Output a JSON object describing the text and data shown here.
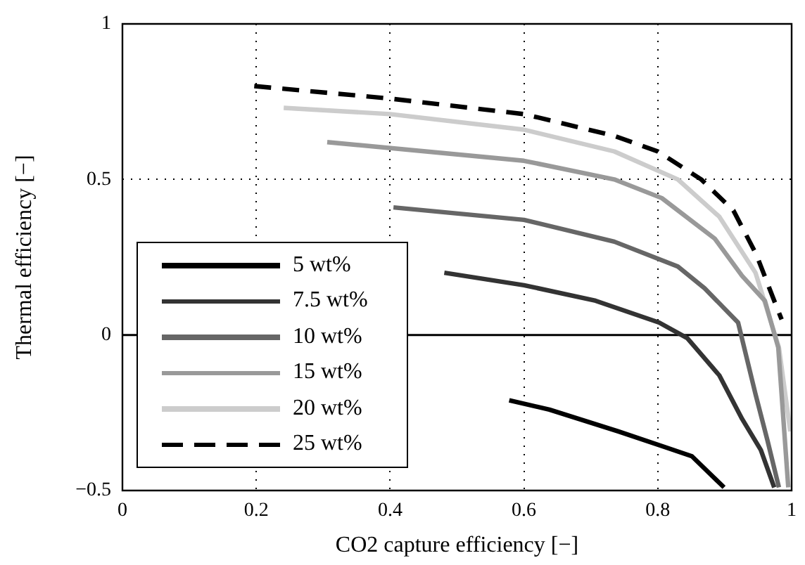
{
  "chart_data": {
    "type": "line",
    "xlabel": "CO2 capture efficiency [−]",
    "ylabel": "Thermal efficiency [−]",
    "xlim": [
      0,
      1
    ],
    "xticks": [
      0,
      0.2,
      0.4,
      0.6,
      0.8,
      1
    ],
    "ylim": [
      -0.5,
      1
    ],
    "yticks": [
      {
        "value": -0.5,
        "label": "−0.5"
      },
      0,
      0.5,
      1
    ],
    "grid": true,
    "legend": "bottom left",
    "marker": "none",
    "ref_lines": [
      {
        "axis": "y",
        "value": 0,
        "color": "#000000",
        "line_style": "solid"
      }
    ],
    "series": [
      {
        "name": "5 wt%",
        "color": "#000000",
        "line_style": "solid",
        "x": [
          0.578,
          0.638,
          0.741,
          0.81,
          0.851,
          0.899
        ],
        "values": [
          -0.21,
          -0.24,
          -0.31,
          -0.36,
          -0.39,
          -0.49
        ]
      },
      {
        "name": "7.5 wt%",
        "color": "#333333",
        "line_style": "solid",
        "x": [
          0.481,
          0.6,
          0.707,
          0.802,
          0.844,
          0.892,
          0.926,
          0.954,
          0.974
        ],
        "values": [
          0.2,
          0.16,
          0.11,
          0.04,
          -0.01,
          -0.13,
          -0.27,
          -0.37,
          -0.49
        ]
      },
      {
        "name": "10 wt%",
        "color": "#666666",
        "line_style": "solid",
        "x": [
          0.405,
          0.6,
          0.735,
          0.83,
          0.87,
          0.92,
          0.946,
          0.964,
          0.981
        ],
        "values": [
          0.41,
          0.37,
          0.3,
          0.22,
          0.15,
          0.04,
          -0.19,
          -0.34,
          -0.49
        ]
      },
      {
        "name": "15 wt%",
        "color": "#999999",
        "line_style": "solid",
        "x": [
          0.306,
          0.6,
          0.735,
          0.806,
          0.885,
          0.926,
          0.96,
          0.98,
          0.995
        ],
        "values": [
          0.62,
          0.56,
          0.5,
          0.44,
          0.31,
          0.19,
          0.11,
          -0.04,
          -0.49
        ]
      },
      {
        "name": "20 wt%",
        "color": "#cccccc",
        "line_style": "solid",
        "x": [
          0.241,
          0.4,
          0.6,
          0.735,
          0.83,
          0.892,
          0.946,
          0.981,
          0.998
        ],
        "values": [
          0.73,
          0.71,
          0.66,
          0.59,
          0.5,
          0.38,
          0.2,
          -0.04,
          -0.31
        ]
      },
      {
        "name": "25 wt%",
        "color": "#000000",
        "line_style": "dashed",
        "x": [
          0.197,
          0.4,
          0.6,
          0.735,
          0.8,
          0.865,
          0.913,
          0.947,
          0.974,
          0.985
        ],
        "values": [
          0.8,
          0.76,
          0.71,
          0.64,
          0.59,
          0.5,
          0.4,
          0.26,
          0.11,
          0.05
        ]
      }
    ]
  }
}
